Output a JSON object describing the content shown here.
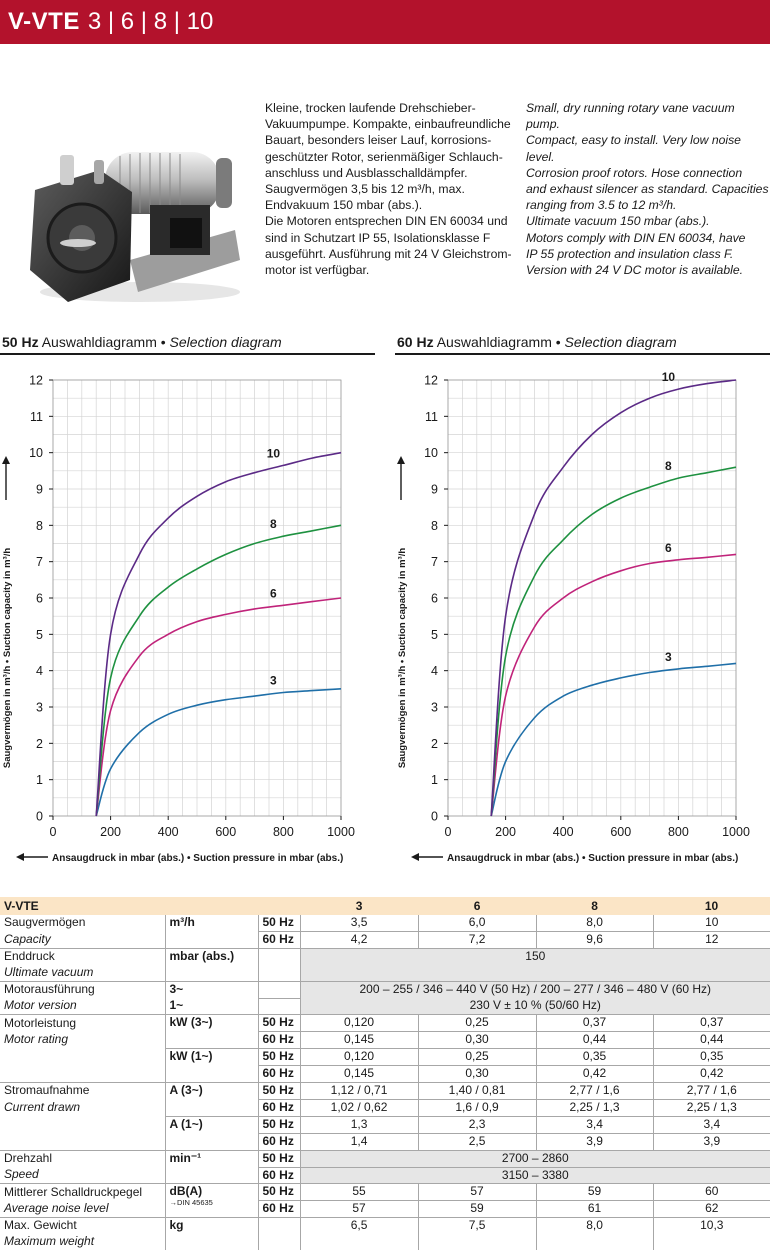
{
  "header": {
    "model": "V-VTE",
    "sizes": "3 | 6 | 8 | 10"
  },
  "description": {
    "de": "Kleine, trocken laufende Drehschieber-\nVakuumpumpe. Kompakte, einbaufreundliche\nBauart, besonders leiser Lauf, korrosions-\ngeschützter Rotor, serienmäßiger Schlauch-\nanschluss und Ausblasschalldämpfer.\nSaugvermögen 3,5 bis 12 m³/h, max.\nEndvakuum 150 mbar (abs.).\nDie Motoren entsprechen DIN EN 60034 und\nsind in Schutzart IP 55, Isolationsklasse F\nausgeführt. Ausführung mit 24 V Gleichstrom-\nmotor ist verfügbar.",
    "en": "Small, dry running rotary vane vacuum pump.\nCompact, easy to install. Very low noise level.\nCorrosion proof rotors. Hose connection\nand exhaust silencer as standard. Capacities\nranging from 3.5 to 12 m³/h.\nUltimate vacuum 150 mbar (abs.).\nMotors comply with DIN EN 60034, have\nIP 55 protection and insulation class F.\nVersion with 24 V DC motor is available."
  },
  "chart_data": [
    {
      "type": "line",
      "title_bold": "50 Hz",
      "title_de": "Auswahldiagramm •",
      "title_en": "Selection diagram",
      "xlabel": "Ansaugdruck in mbar (abs.) • Suction pressure in mbar (abs.)",
      "ylabel": "Saugvermögen in m³/h • Suction capacity in m³/h",
      "xlim": [
        0,
        1000
      ],
      "ylim": [
        0,
        12
      ],
      "x_ticks": [
        "0",
        "200",
        "400",
        "600",
        "800",
        "1000"
      ],
      "y_ticks": [
        "0",
        "1",
        "2",
        "3",
        "4",
        "5",
        "6",
        "7",
        "8",
        "9",
        "10",
        "11",
        "12"
      ],
      "grid": true,
      "series": [
        {
          "name": "3",
          "color": "#1f6fa8",
          "x": [
            150,
            200,
            300,
            400,
            500,
            600,
            700,
            800,
            900,
            1000
          ],
          "y": [
            0,
            1.3,
            2.3,
            2.8,
            3.05,
            3.2,
            3.3,
            3.4,
            3.45,
            3.5
          ]
        },
        {
          "name": "6",
          "color": "#c0237a",
          "x": [
            150,
            200,
            300,
            400,
            500,
            600,
            700,
            800,
            900,
            1000
          ],
          "y": [
            0,
            2.9,
            4.4,
            5.0,
            5.35,
            5.55,
            5.7,
            5.8,
            5.9,
            6.0
          ]
        },
        {
          "name": "8",
          "color": "#1e9140",
          "x": [
            150,
            200,
            300,
            400,
            500,
            600,
            700,
            800,
            900,
            1000
          ],
          "y": [
            0,
            3.8,
            5.5,
            6.3,
            6.8,
            7.2,
            7.5,
            7.7,
            7.85,
            8.0
          ]
        },
        {
          "name": "10",
          "color": "#5b2a86",
          "x": [
            150,
            200,
            300,
            400,
            500,
            600,
            700,
            800,
            900,
            1000
          ],
          "y": [
            0,
            5.0,
            7.2,
            8.2,
            8.8,
            9.2,
            9.45,
            9.65,
            9.85,
            10.0
          ]
        }
      ]
    },
    {
      "type": "line",
      "title_bold": "60 Hz",
      "title_de": "Auswahldiagramm •",
      "title_en": "Selection diagram",
      "xlabel": "Ansaugdruck in mbar (abs.) • Suction pressure in mbar (abs.)",
      "ylabel": "Saugvermögen in m³/h • Suction capacity in m³/h",
      "xlim": [
        0,
        1000
      ],
      "ylim": [
        0,
        12
      ],
      "x_ticks": [
        "0",
        "200",
        "400",
        "600",
        "800",
        "1000"
      ],
      "y_ticks": [
        "0",
        "1",
        "2",
        "3",
        "4",
        "5",
        "6",
        "7",
        "8",
        "9",
        "10",
        "11",
        "12"
      ],
      "grid": true,
      "series": [
        {
          "name": "3",
          "color": "#1f6fa8",
          "x": [
            150,
            200,
            300,
            400,
            500,
            600,
            700,
            800,
            900,
            1000
          ],
          "y": [
            0,
            1.5,
            2.7,
            3.3,
            3.6,
            3.8,
            3.95,
            4.05,
            4.12,
            4.2
          ]
        },
        {
          "name": "6",
          "color": "#c0237a",
          "x": [
            150,
            200,
            300,
            400,
            500,
            600,
            700,
            800,
            900,
            1000
          ],
          "y": [
            0,
            3.3,
            5.2,
            6.0,
            6.45,
            6.75,
            6.95,
            7.05,
            7.12,
            7.2
          ]
        },
        {
          "name": "8",
          "color": "#1e9140",
          "x": [
            150,
            200,
            300,
            400,
            500,
            600,
            700,
            800,
            900,
            1000
          ],
          "y": [
            0,
            4.4,
            6.6,
            7.6,
            8.3,
            8.75,
            9.05,
            9.3,
            9.45,
            9.6
          ]
        },
        {
          "name": "10",
          "color": "#5b2a86",
          "x": [
            150,
            200,
            300,
            400,
            500,
            600,
            700,
            800,
            900,
            1000
          ],
          "y": [
            0,
            5.5,
            8.3,
            9.6,
            10.5,
            11.1,
            11.5,
            11.75,
            11.9,
            12.0
          ]
        }
      ]
    }
  ],
  "table": {
    "header": {
      "label": "V-VTE",
      "cols": [
        "3",
        "6",
        "8",
        "10"
      ]
    },
    "capacity": {
      "de": "Saugvermögen",
      "en": "Capacity",
      "unit": "m³/h",
      "r50": {
        "hz": "50 Hz",
        "v": [
          "3,5",
          "6,0",
          "8,0",
          "10"
        ]
      },
      "r60": {
        "hz": "60 Hz",
        "v": [
          "4,2",
          "7,2",
          "9,6",
          "12"
        ]
      }
    },
    "ultimate": {
      "de": "Enddruck",
      "en": "Ultimate vacuum",
      "unit": "mbar (abs.)",
      "value": "150"
    },
    "motor_version": {
      "de": "Motorausführung",
      "en": "Motor version",
      "unit3": "3~",
      "unit1": "1~",
      "value3": "200 – 255 / 346 – 440 V (50 Hz) / 200 – 277 / 346 – 480 V (60 Hz)",
      "value1": "230 V ± 10 % (50/60 Hz)"
    },
    "motor_rating": {
      "de": "Motorleistung",
      "en": "Motor rating",
      "unit3": "kW (3~)",
      "unit1": "kW (1~)",
      "r3_50": {
        "hz": "50 Hz",
        "v": [
          "0,120",
          "0,25",
          "0,37",
          "0,37"
        ]
      },
      "r3_60": {
        "hz": "60 Hz",
        "v": [
          "0,145",
          "0,30",
          "0,44",
          "0,44"
        ]
      },
      "r1_50": {
        "hz": "50 Hz",
        "v": [
          "0,120",
          "0,25",
          "0,35",
          "0,35"
        ]
      },
      "r1_60": {
        "hz": "60 Hz",
        "v": [
          "0,145",
          "0,30",
          "0,42",
          "0,42"
        ]
      }
    },
    "current": {
      "de": "Stromaufnahme",
      "en": "Current drawn",
      "unit3": "A (3~)",
      "unit1": "A (1~)",
      "r3_50": {
        "hz": "50 Hz",
        "v": [
          "1,12 / 0,71",
          "1,40 / 0,81",
          "2,77 / 1,6",
          "2,77 / 1,6"
        ]
      },
      "r3_60": {
        "hz": "60 Hz",
        "v": [
          "1,02 / 0,62",
          "1,6 / 0,9",
          "2,25 / 1,3",
          "2,25 / 1,3"
        ]
      },
      "r1_50": {
        "hz": "50 Hz",
        "v": [
          "1,3",
          "2,3",
          "3,4",
          "3,4"
        ]
      },
      "r1_60": {
        "hz": "60 Hz",
        "v": [
          "1,4",
          "2,5",
          "3,9",
          "3,9"
        ]
      }
    },
    "speed": {
      "de": "Drehzahl",
      "en": "Speed",
      "unit": "min⁻¹",
      "r50": {
        "hz": "50 Hz",
        "value": "2700 – 2860"
      },
      "r60": {
        "hz": "60 Hz",
        "value": "3150 – 3380"
      }
    },
    "noise": {
      "de": "Mittlerer Schalldruckpegel",
      "en": "Average noise level",
      "unit": "dB(A)",
      "note": "→DIN 45635",
      "r50": {
        "hz": "50 Hz",
        "v": [
          "55",
          "57",
          "59",
          "60"
        ]
      },
      "r60": {
        "hz": "60 Hz",
        "v": [
          "57",
          "59",
          "61",
          "62"
        ]
      }
    },
    "weight": {
      "de": "Max. Gewicht",
      "en": "Maximum weight",
      "unit": "kg",
      "v": [
        "6,5",
        "7,5",
        "8,0",
        "10,3"
      ]
    }
  }
}
